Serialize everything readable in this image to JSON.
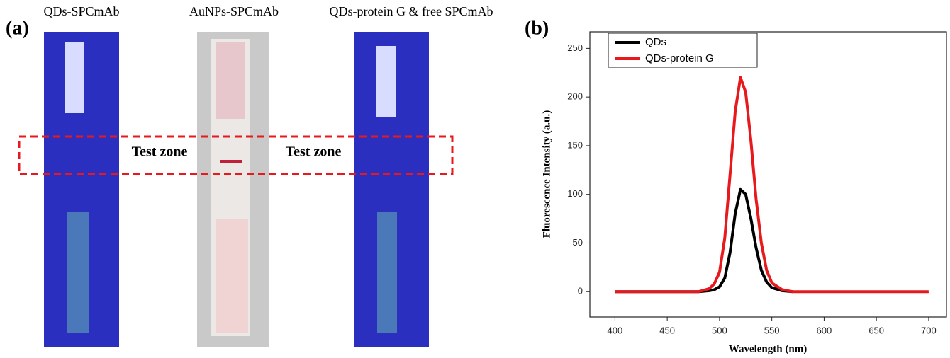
{
  "panel_a": {
    "label": "(a)",
    "strip_labels": [
      "QDs-SPCmAb",
      "AuNPs-SPCmAb",
      "QDs-protein G & free SPCmAb"
    ],
    "zone_labels": [
      "Test zone",
      "Test zone"
    ]
  },
  "chart_data": {
    "type": "line",
    "panel_label": "(b)",
    "x_label": "Wavelength (nm)",
    "y_label": "Fluorescence Intensity (a.u.)",
    "x": [
      400,
      410,
      420,
      430,
      440,
      450,
      460,
      470,
      480,
      490,
      495,
      500,
      505,
      510,
      515,
      520,
      525,
      530,
      535,
      540,
      545,
      550,
      560,
      570,
      580,
      590,
      600,
      610,
      620,
      630,
      640,
      650,
      660,
      670,
      680,
      690,
      700
    ],
    "series": [
      {
        "name": "QDs",
        "color": "#000000",
        "values": [
          0,
          0,
          0,
          0,
          0,
          0,
          0,
          0,
          0,
          1,
          2,
          5,
          14,
          40,
          80,
          105,
          100,
          75,
          45,
          22,
          10,
          4,
          1,
          0,
          null,
          null,
          null,
          null,
          null,
          null,
          null,
          null,
          null,
          null,
          null,
          null,
          null
        ]
      },
      {
        "name": "QDs-protein G",
        "color": "#e8191c",
        "values": [
          0,
          0,
          0,
          0,
          0,
          0,
          0,
          0,
          0,
          3,
          8,
          20,
          55,
          120,
          185,
          220,
          205,
          155,
          95,
          50,
          22,
          9,
          2,
          0,
          0,
          0,
          0,
          0,
          0,
          0,
          0,
          0,
          0,
          0,
          0,
          0,
          0
        ]
      }
    ],
    "xlim": [
      376,
      717
    ],
    "ylim": [
      -26,
      267
    ],
    "xticks": [
      400,
      450,
      500,
      550,
      600,
      650,
      700
    ],
    "yticks": [
      0,
      50,
      100,
      150,
      200,
      250
    ],
    "grid": false,
    "legend": "top-left"
  }
}
